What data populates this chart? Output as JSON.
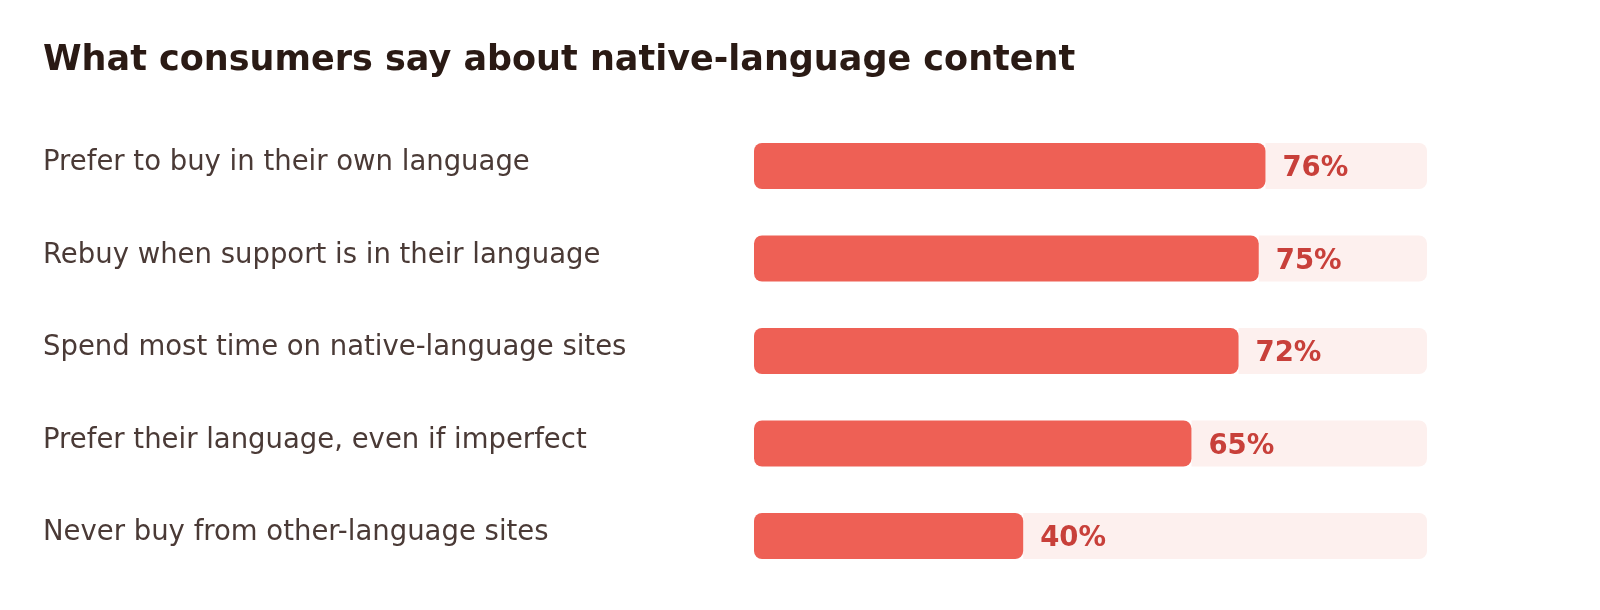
{
  "chart_data": {
    "type": "bar",
    "orientation": "horizontal",
    "title": "What consumers say about native-language content",
    "categories": [
      "Prefer to buy in their own language",
      "Rebuy when support is in their language",
      "Spend most time on native-language sites",
      "Prefer their language, even if imperfect",
      "Never buy from other-language sites"
    ],
    "values": [
      76,
      75,
      72,
      65,
      40
    ],
    "value_labels": [
      "76%",
      "75%",
      "72%",
      "65%",
      "40%"
    ],
    "color": "#ee6055",
    "xlim": [
      0,
      100
    ],
    "tick_labels": "y"
  }
}
